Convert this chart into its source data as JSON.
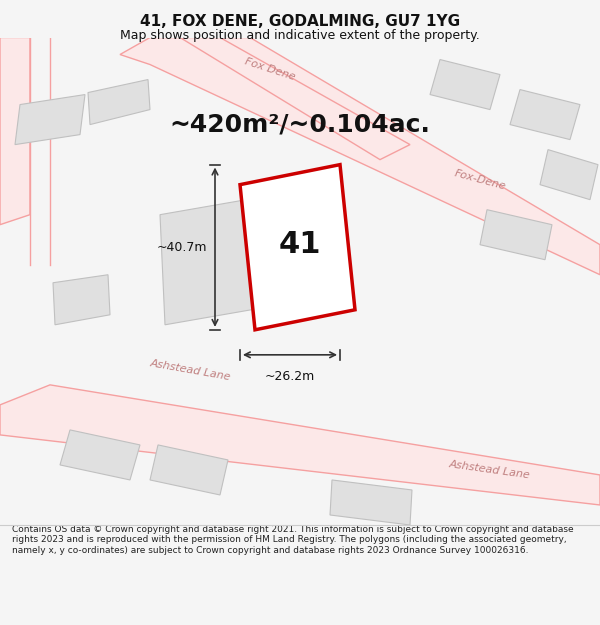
{
  "title": "41, FOX DENE, GODALMING, GU7 1YG",
  "subtitle": "Map shows position and indicative extent of the property.",
  "area_text": "~420m²/~0.104ac.",
  "width_label": "~26.2m",
  "height_label": "~40.7m",
  "number_label": "41",
  "footer": "Contains OS data © Crown copyright and database right 2021. This information is subject to Crown copyright and database rights 2023 and is reproduced with the permission of HM Land Registry. The polygons (including the associated geometry, namely x, y co-ordinates) are subject to Crown copyright and database rights 2023 Ordnance Survey 100026316.",
  "bg_color": "#f5f5f5",
  "map_bg": "#ffffff",
  "road_color": "#f5a0a0",
  "road_fill": "#fce8e8",
  "building_fill": "#e0e0e0",
  "building_edge": "#c0c0c0",
  "highlight_fill": "#ffffff",
  "highlight_edge": "#cc0000",
  "road_label_color": "#c08080",
  "dim_line_color": "#333333",
  "text_color": "#111111",
  "footer_color": "#222222"
}
